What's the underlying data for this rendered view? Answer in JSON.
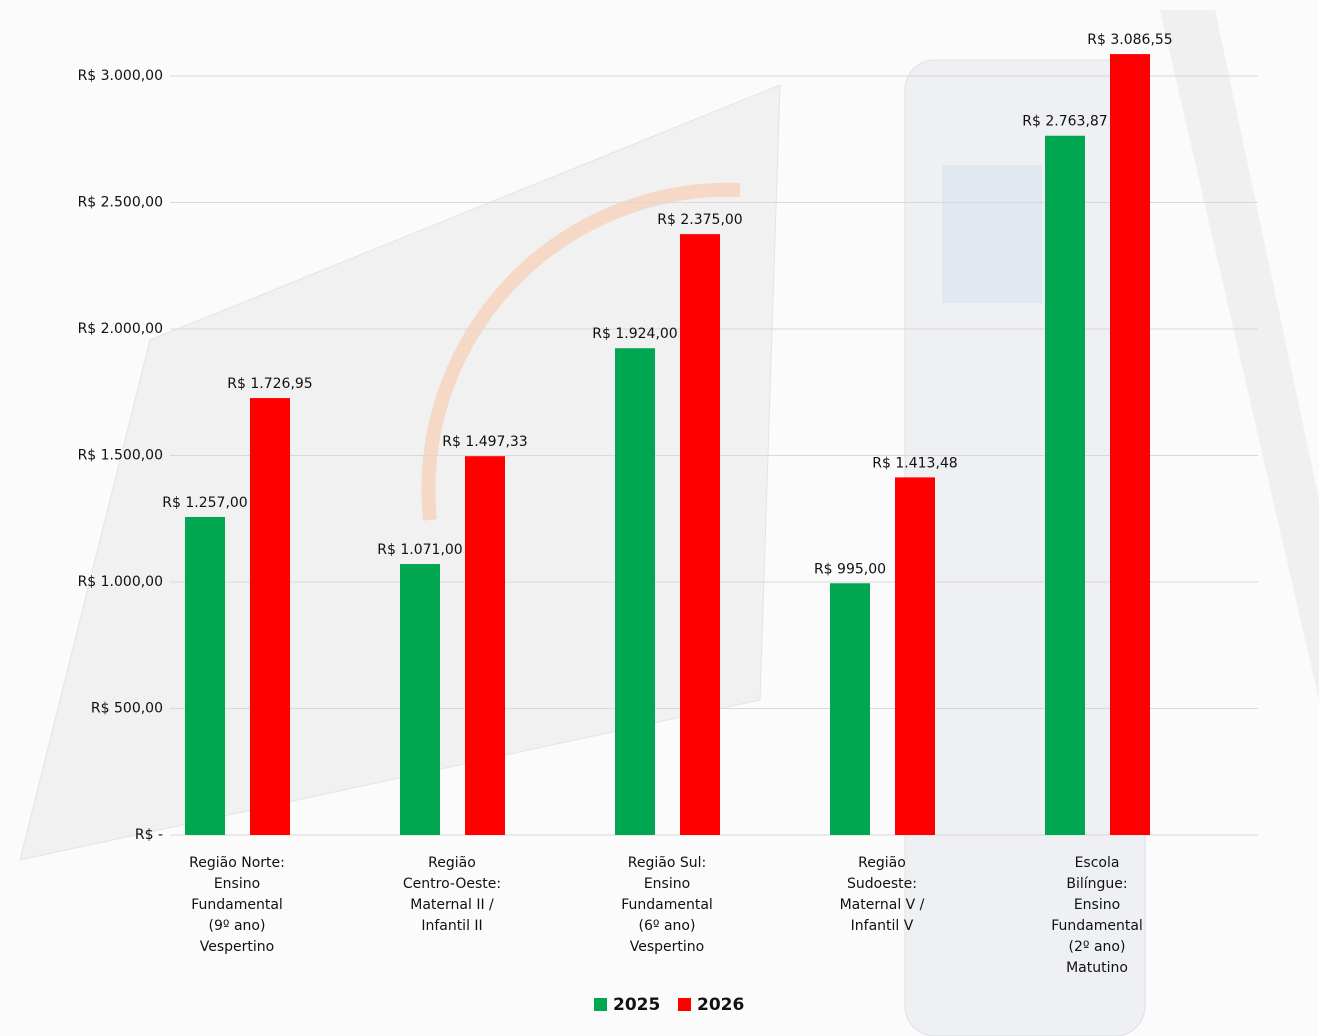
{
  "chart_data": {
    "type": "bar",
    "categories": [
      [
        "Região Norte:",
        "Ensino",
        "Fundamental",
        "(9º ano)",
        "Vespertino"
      ],
      [
        "Região",
        "Centro-Oeste:",
        "Maternal II /",
        "Infantil II"
      ],
      [
        "Região Sul:",
        "Ensino",
        "Fundamental",
        "(6º ano)",
        "Vespertino"
      ],
      [
        "Região",
        "Sudoeste:",
        "Maternal V /",
        "Infantil V"
      ],
      [
        "Escola",
        "Bilíngue:",
        "Ensino",
        "Fundamental",
        "(2º ano)",
        "Matutino"
      ]
    ],
    "series": [
      {
        "name": "2025",
        "color": "#00a650",
        "values": [
          1257,
          1071,
          1924,
          995,
          2763.87
        ],
        "value_labels": [
          "R$ 1.257,00",
          "R$ 1.071,00",
          "R$ 1.924,00",
          "R$ 995,00",
          "R$ 2.763,87"
        ]
      },
      {
        "name": "2026",
        "color": "#ff0000",
        "values": [
          1726.95,
          1497.33,
          2375,
          1413.48,
          3086.55
        ],
        "value_labels": [
          "R$ 1.726,95",
          "R$ 1.497,33",
          "R$ 2.375,00",
          "R$ 1.413,48",
          "R$ 3.086,55"
        ]
      }
    ],
    "ylim": [
      0,
      3100
    ],
    "yticks": [
      {
        "value": 0,
        "label": "R$ -"
      },
      {
        "value": 500,
        "label": "R$ 500,00"
      },
      {
        "value": 1000,
        "label": "R$ 1.000,00"
      },
      {
        "value": 1500,
        "label": "R$ 1.500,00"
      },
      {
        "value": 2000,
        "label": "R$ 2.000,00"
      },
      {
        "value": 2500,
        "label": "R$ 2.500,00"
      },
      {
        "value": 3000,
        "label": "R$ 3.000,00"
      }
    ],
    "grid": true,
    "legend": "bottom"
  }
}
